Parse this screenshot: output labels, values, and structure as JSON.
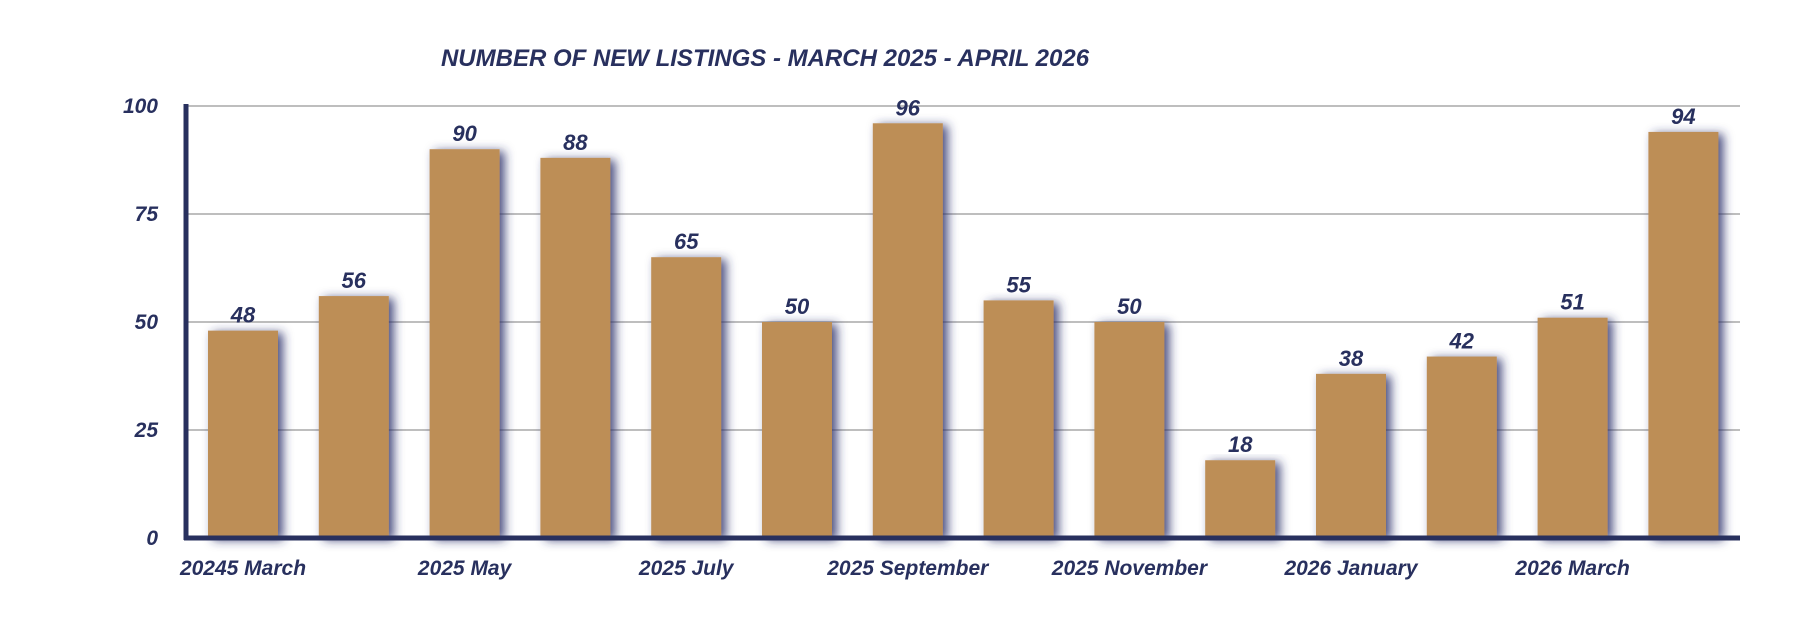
{
  "colors": {
    "bar": "#bd8e57",
    "text": "#28305e",
    "axis": "#28305e",
    "grid": "#a8a8a8",
    "shadow": "#2a2f6a"
  },
  "chart_data": {
    "type": "bar",
    "title": "NUMBER OF NEW LISTINGS - MARCH 2025 - APRIL 2026",
    "xlabel": "",
    "ylabel": "",
    "ylim": [
      0,
      100
    ],
    "yticks": [
      0,
      25,
      50,
      75,
      100
    ],
    "grid": true,
    "legend": "none",
    "categories": [
      "20245 March",
      "",
      "2025 May",
      "",
      "2025 July",
      "",
      "2025 September",
      "",
      "2025 November",
      "",
      "2026 January",
      "",
      "2026 March",
      ""
    ],
    "values": [
      48,
      56,
      90,
      88,
      65,
      50,
      96,
      55,
      50,
      18,
      38,
      42,
      51,
      94
    ]
  }
}
